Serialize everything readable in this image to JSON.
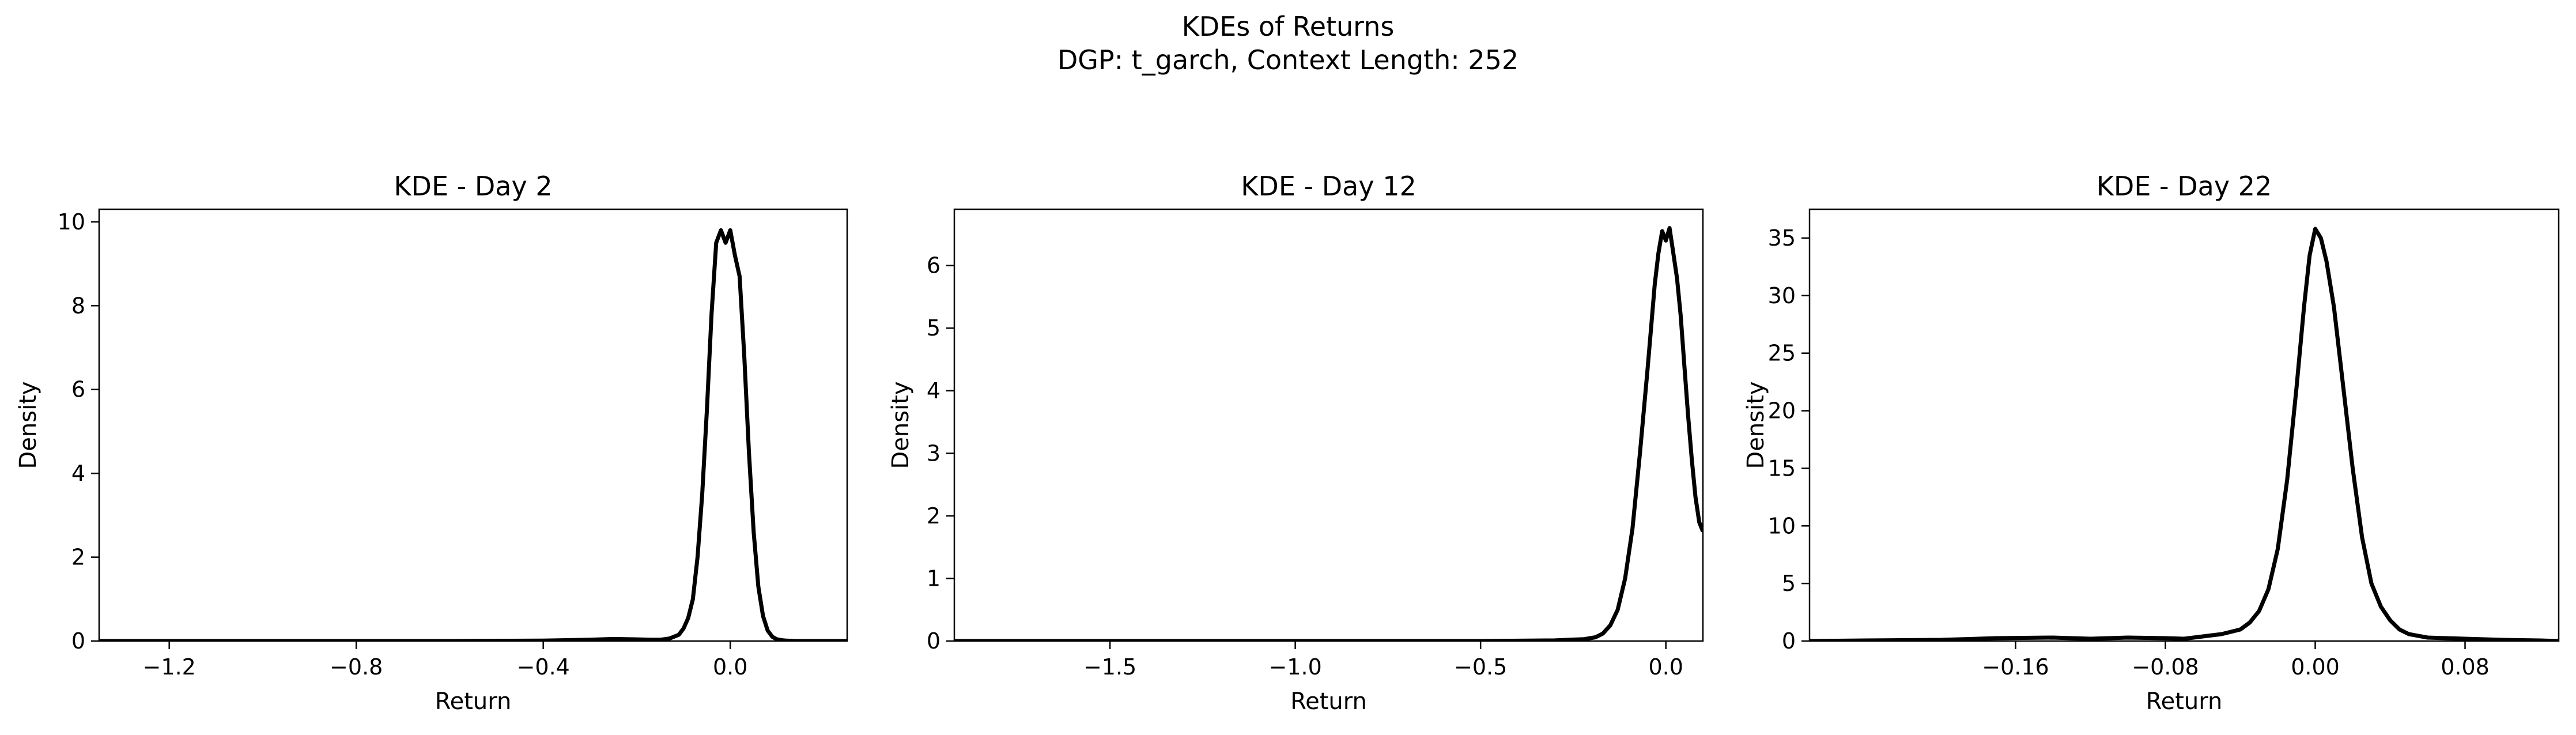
{
  "figure": {
    "title_line1": "KDEs of Returns",
    "title_line2": "DGP: t_garch, Context Length: 252"
  },
  "chart_data": [
    {
      "type": "line",
      "title": "KDE - Day 2",
      "xlabel": "Return",
      "ylabel": "Density",
      "xlim": [
        -1.35,
        0.25
      ],
      "ylim": [
        0,
        10.3
      ],
      "xticks": [
        -1.2,
        -0.8,
        -0.4,
        0.0
      ],
      "xtick_labels": [
        "−1.2",
        "−0.8",
        "−0.4",
        "0.0"
      ],
      "yticks": [
        0,
        2,
        4,
        6,
        8,
        10
      ],
      "ytick_labels": [
        "0",
        "2",
        "4",
        "6",
        "8",
        "10"
      ],
      "grid": false,
      "series": [
        {
          "color": "#000000",
          "x": [
            -1.35,
            -1.2,
            -1.0,
            -0.8,
            -0.6,
            -0.4,
            -0.3,
            -0.25,
            -0.2,
            -0.17,
            -0.15,
            -0.13,
            -0.11,
            -0.1,
            -0.09,
            -0.08,
            -0.07,
            -0.06,
            -0.05,
            -0.04,
            -0.03,
            -0.02,
            -0.01,
            0.0,
            0.01,
            0.02,
            0.03,
            0.04,
            0.05,
            0.06,
            0.07,
            0.08,
            0.09,
            0.1,
            0.11,
            0.12,
            0.14,
            0.17,
            0.2,
            0.25
          ],
          "y": [
            0.0,
            0.0,
            0.0,
            0.0,
            0.0,
            0.01,
            0.03,
            0.05,
            0.04,
            0.03,
            0.03,
            0.06,
            0.15,
            0.3,
            0.55,
            1.0,
            2.0,
            3.5,
            5.5,
            7.8,
            9.5,
            9.8,
            9.5,
            9.8,
            9.2,
            8.7,
            6.8,
            4.5,
            2.6,
            1.3,
            0.6,
            0.25,
            0.1,
            0.04,
            0.02,
            0.01,
            0.0,
            0.0,
            0.0,
            0.0
          ]
        }
      ]
    },
    {
      "type": "line",
      "title": "KDE - Day 12",
      "xlabel": "Return",
      "ylabel": "Density",
      "xlim": [
        -1.92,
        0.1
      ],
      "ylim": [
        0,
        6.9
      ],
      "xticks": [
        -1.5,
        -1.0,
        -0.5,
        0.0
      ],
      "xtick_labels": [
        "−1.5",
        "−1.0",
        "−0.5",
        "0.0"
      ],
      "yticks": [
        0,
        1,
        2,
        3,
        4,
        5,
        6
      ],
      "ytick_labels": [
        "0",
        "1",
        "2",
        "3",
        "4",
        "5",
        "6"
      ],
      "grid": false,
      "series": [
        {
          "color": "#000000",
          "x": [
            -1.92,
            -1.5,
            -1.0,
            -0.5,
            -0.3,
            -0.22,
            -0.19,
            -0.17,
            -0.15,
            -0.13,
            -0.11,
            -0.09,
            -0.07,
            -0.05,
            -0.04,
            -0.03,
            -0.02,
            -0.01,
            0.0,
            0.01,
            0.02,
            0.03,
            0.04,
            0.05,
            0.06,
            0.07,
            0.08,
            0.09,
            0.1
          ],
          "y": [
            0.0,
            0.0,
            0.0,
            0.0,
            0.01,
            0.03,
            0.06,
            0.12,
            0.25,
            0.5,
            1.0,
            1.8,
            3.0,
            4.3,
            5.0,
            5.7,
            6.2,
            6.55,
            6.4,
            6.6,
            6.2,
            5.8,
            5.2,
            4.4,
            3.6,
            2.9,
            2.3,
            1.9,
            1.75
          ]
        }
      ]
    },
    {
      "type": "line",
      "title": "KDE - Day 22",
      "xlabel": "Return",
      "ylabel": "Density",
      "xlim": [
        -0.27,
        0.13
      ],
      "ylim": [
        0,
        37.5
      ],
      "xticks": [
        -0.16,
        -0.08,
        0.0,
        0.08
      ],
      "xtick_labels": [
        "−0.16",
        "−0.08",
        "0.00",
        "0.08"
      ],
      "yticks": [
        0,
        5,
        10,
        15,
        20,
        25,
        30,
        35
      ],
      "ytick_labels": [
        "0",
        "5",
        "10",
        "15",
        "20",
        "25",
        "30",
        "35"
      ],
      "grid": false,
      "series": [
        {
          "color": "#000000",
          "x": [
            -0.27,
            -0.24,
            -0.2,
            -0.17,
            -0.14,
            -0.12,
            -0.1,
            -0.08,
            -0.07,
            -0.06,
            -0.05,
            -0.04,
            -0.035,
            -0.03,
            -0.025,
            -0.02,
            -0.015,
            -0.01,
            -0.006,
            -0.003,
            0.0,
            0.003,
            0.006,
            0.01,
            0.015,
            0.02,
            0.025,
            0.03,
            0.035,
            0.04,
            0.045,
            0.05,
            0.06,
            0.07,
            0.08,
            0.1,
            0.12,
            0.13
          ],
          "y": [
            0.0,
            0.05,
            0.1,
            0.25,
            0.3,
            0.2,
            0.3,
            0.25,
            0.2,
            0.4,
            0.6,
            1.0,
            1.6,
            2.6,
            4.5,
            8.0,
            14.0,
            22.0,
            29.0,
            33.5,
            35.8,
            35.0,
            33.0,
            29.0,
            22.0,
            15.0,
            9.0,
            5.0,
            3.0,
            1.8,
            1.0,
            0.6,
            0.3,
            0.25,
            0.2,
            0.1,
            0.05,
            0.0
          ]
        }
      ]
    }
  ]
}
